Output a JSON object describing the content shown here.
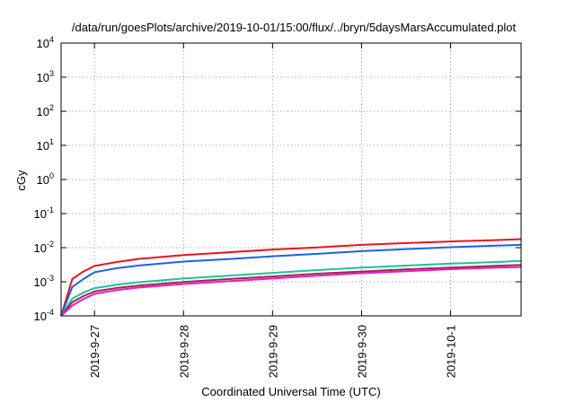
{
  "chart_data": {
    "type": "line",
    "title": "/data/run/goesPlots/archive/2019-10-01/15:00/flux/../bryn/5daysMarsAccumulated.plot",
    "xlabel": "Coordinated Universal Time (UTC)",
    "ylabel": "cGy",
    "y_scale": "log",
    "ylim": [
      0.0001,
      10000
    ],
    "y_ticks": [
      {
        "base": "10",
        "exp": "-4"
      },
      {
        "base": "10",
        "exp": "-3"
      },
      {
        "base": "10",
        "exp": "-2"
      },
      {
        "base": "10",
        "exp": "-1"
      },
      {
        "base": "10",
        "exp": "0"
      },
      {
        "base": "10",
        "exp": "1"
      },
      {
        "base": "10",
        "exp": "2"
      },
      {
        "base": "10",
        "exp": "3"
      },
      {
        "base": "10",
        "exp": "4"
      }
    ],
    "xlim": [
      "2019-09-26T15:00",
      "2019-10-01T19:00"
    ],
    "x_ticks": [
      {
        "value": "2019-09-27T00:00",
        "label": "2019-9-27"
      },
      {
        "value": "2019-09-28T00:00",
        "label": "2019-9-28"
      },
      {
        "value": "2019-09-29T00:00",
        "label": "2019-9-29"
      },
      {
        "value": "2019-09-30T00:00",
        "label": "2019-9-30"
      },
      {
        "value": "2019-10-01T00:00",
        "label": "2019-10-1"
      }
    ],
    "grid": true,
    "x": [
      "2019-09-26T15:00",
      "2019-09-26T18:00",
      "2019-09-26T21:00",
      "2019-09-27T00:00",
      "2019-09-27T06:00",
      "2019-09-27T12:00",
      "2019-09-28T00:00",
      "2019-09-28T12:00",
      "2019-09-29T00:00",
      "2019-09-29T12:00",
      "2019-09-30T00:00",
      "2019-09-30T12:00",
      "2019-10-01T00:00",
      "2019-10-01T12:00",
      "2019-10-01T19:00"
    ],
    "series": [
      {
        "color": "#e8141c",
        "values": [
          8e-05,
          0.0012,
          0.002,
          0.0029,
          0.0038,
          0.0047,
          0.0061,
          0.0073,
          0.0088,
          0.0102,
          0.0121,
          0.0136,
          0.0152,
          0.0166,
          0.0178
        ]
      },
      {
        "color": "#1c62e8",
        "values": [
          6e-05,
          0.0007,
          0.0012,
          0.0019,
          0.0025,
          0.003,
          0.0039,
          0.0046,
          0.0056,
          0.0066,
          0.0079,
          0.0091,
          0.0103,
          0.0114,
          0.0121
        ]
      },
      {
        "color": "#1cc49a",
        "values": [
          9e-05,
          0.00032,
          0.00048,
          0.00065,
          0.00082,
          0.00097,
          0.00124,
          0.0015,
          0.00182,
          0.0022,
          0.0026,
          0.00298,
          0.0034,
          0.0038,
          0.0041
        ]
      },
      {
        "color": "#a02850",
        "values": [
          8e-05,
          0.00025,
          0.00038,
          0.00052,
          0.00066,
          0.00077,
          0.00098,
          0.0012,
          0.00143,
          0.00173,
          0.002,
          0.00232,
          0.0026,
          0.00292,
          0.0031
        ]
      },
      {
        "color": "#e81cc4",
        "values": [
          7e-05,
          0.0002,
          0.00031,
          0.00044,
          0.00057,
          0.00068,
          0.00086,
          0.00104,
          0.00124,
          0.00151,
          0.00178,
          0.00205,
          0.00234,
          0.00259,
          0.0027
        ]
      }
    ]
  }
}
